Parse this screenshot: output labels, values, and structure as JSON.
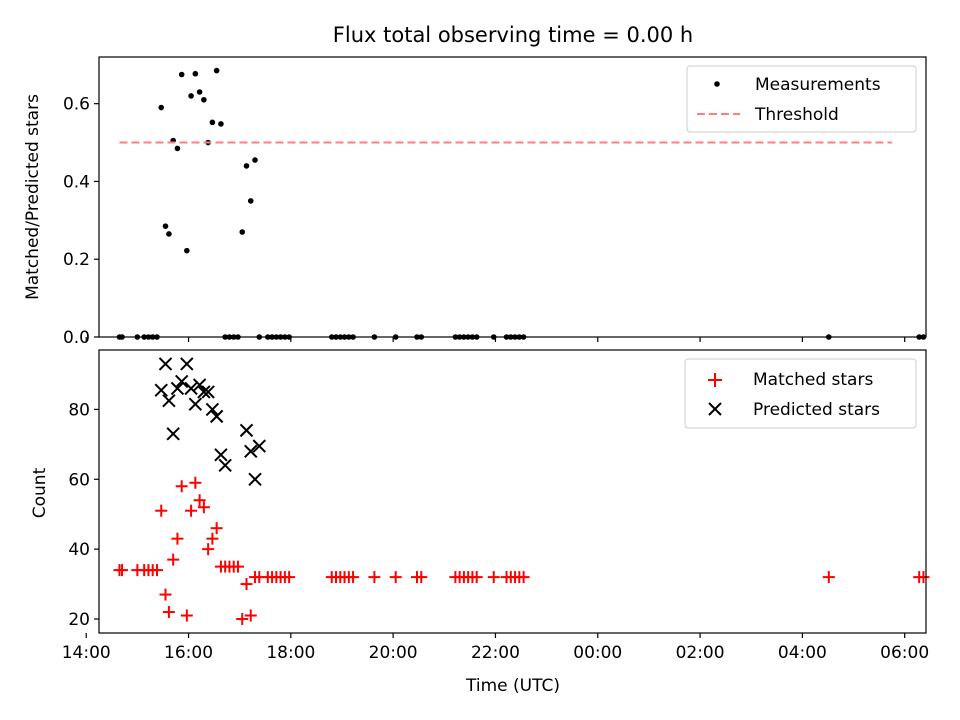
{
  "title": "Flux total observing time = 0.00 h",
  "chart_data": [
    {
      "type": "scatter",
      "title": "Flux total observing time = 0.00 h",
      "xlabel": "",
      "ylabel": "Matched/Predicted stars",
      "xlim": [
        "14:15",
        "30:25"
      ],
      "ylim": [
        0.0,
        0.72
      ],
      "yticks": [
        0.0,
        0.2,
        0.4,
        0.6
      ],
      "ytick_labels": [
        "0.0",
        "0.2",
        "0.4",
        "0.6"
      ],
      "legend": "top-right",
      "series": [
        {
          "name": "Measurements",
          "marker": "dot",
          "color": "#000000",
          "x": [
            "14:39",
            "14:42",
            "15:00",
            "15:08",
            "15:13",
            "15:18",
            "15:23",
            "15:28",
            "15:33",
            "15:37",
            "15:42",
            "15:47",
            "15:52",
            "15:58",
            "16:03",
            "16:08",
            "16:13",
            "16:18",
            "16:23",
            "16:28",
            "16:33",
            "16:38",
            "16:43",
            "16:48",
            "16:53",
            "16:58",
            "17:03",
            "17:08",
            "17:13",
            "17:18",
            "17:23",
            "17:33",
            "17:38",
            "17:43",
            "17:48",
            "17:53",
            "17:58",
            "18:48",
            "18:53",
            "18:58",
            "19:03",
            "19:08",
            "19:13",
            "19:38",
            "20:03",
            "20:28",
            "20:33",
            "21:13",
            "21:18",
            "21:23",
            "21:28",
            "21:33",
            "21:38",
            "21:58",
            "22:13",
            "22:18",
            "22:23",
            "22:28",
            "22:33",
            "28:31",
            "30:17",
            "30:22"
          ],
          "y": [
            0,
            0,
            0,
            0,
            0,
            0,
            0,
            0.59,
            0.285,
            0.265,
            0.505,
            0.485,
            0.675,
            0.222,
            0.62,
            0.677,
            0.63,
            0.61,
            0.5,
            0.552,
            0.685,
            0.548,
            0,
            0,
            0,
            0,
            0.27,
            0.44,
            0.35,
            0.455,
            0,
            0,
            0,
            0,
            0,
            0,
            0,
            0,
            0,
            0,
            0,
            0,
            0,
            0,
            0,
            0,
            0,
            0,
            0,
            0,
            0,
            0,
            0,
            0,
            0,
            0,
            0,
            0,
            0,
            0,
            0,
            0
          ]
        },
        {
          "name": "Threshold",
          "line": "dashed",
          "color": "#ff7f7f",
          "x": [
            "14:39",
            "29:45"
          ],
          "y": [
            0.5,
            0.5
          ]
        }
      ]
    },
    {
      "type": "scatter",
      "title": "",
      "xlabel": "Time (UTC)",
      "ylabel": "Count",
      "xlim": [
        "14:15",
        "30:25"
      ],
      "ylim": [
        16,
        97
      ],
      "yticks": [
        20,
        40,
        60,
        80
      ],
      "ytick_labels": [
        "20",
        "40",
        "60",
        "80"
      ],
      "xticks": [
        "14:00",
        "16:00",
        "18:00",
        "20:00",
        "22:00",
        "24:00",
        "26:00",
        "28:00",
        "30:00"
      ],
      "xtick_labels": [
        "14:00",
        "16:00",
        "18:00",
        "20:00",
        "22:00",
        "00:00",
        "02:00",
        "04:00",
        "06:00"
      ],
      "legend": "top-right",
      "series": [
        {
          "name": "Matched stars",
          "marker": "plus",
          "color": "#ff0000",
          "x": [
            "14:39",
            "14:42",
            "15:00",
            "15:08",
            "15:13",
            "15:18",
            "15:23",
            "15:28",
            "15:33",
            "15:37",
            "15:42",
            "15:47",
            "15:52",
            "15:58",
            "16:03",
            "16:08",
            "16:13",
            "16:18",
            "16:23",
            "16:28",
            "16:33",
            "16:38",
            "16:43",
            "16:48",
            "16:53",
            "16:58",
            "17:03",
            "17:08",
            "17:13",
            "17:18",
            "17:23",
            "17:33",
            "17:38",
            "17:43",
            "17:48",
            "17:53",
            "17:58",
            "18:48",
            "18:53",
            "18:58",
            "19:03",
            "19:08",
            "19:13",
            "19:38",
            "20:03",
            "20:28",
            "20:33",
            "21:13",
            "21:18",
            "21:23",
            "21:28",
            "21:33",
            "21:38",
            "21:58",
            "22:13",
            "22:18",
            "22:23",
            "22:28",
            "22:33",
            "28:31",
            "30:17",
            "30:22"
          ],
          "y": [
            34,
            34,
            34,
            34,
            34,
            34,
            34,
            51,
            27,
            22,
            37,
            43,
            58,
            21,
            51,
            59,
            54,
            52,
            40,
            43,
            46,
            35,
            35,
            35,
            35,
            35,
            20,
            30,
            21,
            32,
            32,
            32,
            32,
            32,
            32,
            32,
            32,
            32,
            32,
            32,
            32,
            32,
            32,
            32,
            32,
            32,
            32,
            32,
            32,
            32,
            32,
            32,
            32,
            32,
            32,
            32,
            32,
            32,
            32,
            32,
            32,
            32
          ]
        },
        {
          "name": "Predicted stars",
          "marker": "x",
          "color": "#000000",
          "x": [
            "15:28",
            "15:33",
            "15:37",
            "15:42",
            "15:47",
            "15:52",
            "15:58",
            "16:03",
            "16:08",
            "16:13",
            "16:18",
            "16:23",
            "16:28",
            "16:33",
            "16:38",
            "16:43",
            "17:08",
            "17:13",
            "17:18",
            "17:23"
          ],
          "y": [
            85.5,
            93,
            82.5,
            73,
            86,
            88,
            93,
            86,
            81.5,
            87,
            85,
            85,
            80,
            78,
            67,
            64,
            74,
            68,
            60,
            69.5
          ]
        }
      ]
    }
  ]
}
